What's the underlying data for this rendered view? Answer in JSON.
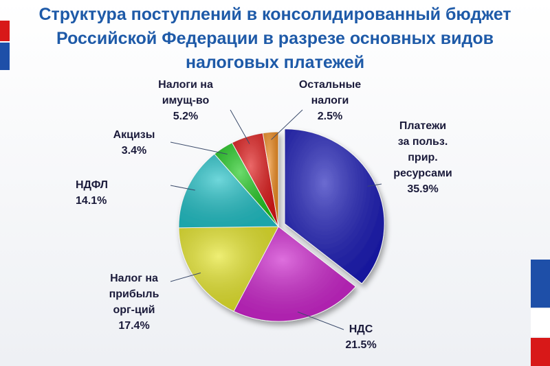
{
  "chart_data": {
    "type": "pie",
    "title": "Структура поступлений в консолидированный бюджет\nРоссийской Федерации в разрезе основных видов\nналоговых платежей",
    "categories": [
      "Платежи\nза польз.\nприр.\nресурсами",
      "НДС",
      "Налог на\nприбыль\nорг-ций",
      "НДФЛ",
      "Акцизы",
      "Налоги на\nимущ-во",
      "Остальные\nналоги"
    ],
    "values": [
      35.9,
      21.5,
      17.4,
      14.1,
      3.4,
      5.2,
      2.5
    ],
    "value_labels": [
      "35.9%",
      "21.5%",
      "17.4%",
      "14.1%",
      "3.4%",
      "5.2%",
      "2.5%"
    ],
    "colors": [
      "#1c1cb8",
      "#cc22cc",
      "#e6e62a",
      "#22c2c8",
      "#1ec81e",
      "#e01818",
      "#f08c20"
    ]
  }
}
